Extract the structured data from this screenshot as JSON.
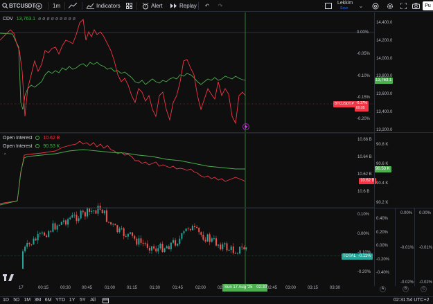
{
  "toolbar": {
    "symbol": "BTCUSDT",
    "interval": "1m",
    "indicators_label": "Indicators",
    "alert_label": "Alert",
    "replay_label": "Replay",
    "layout_name": "Lekkim",
    "layout_status": "Save",
    "publish_label": "Pu"
  },
  "panes": {
    "cdv": {
      "legend_title": "CDV",
      "legend_value": "13,763.1",
      "legend_extra": "ø ø ø ø ø ø ø ø ø",
      "price_ticks": [
        "14,400.0",
        "14,200.0",
        "14,000.0",
        "13,800.0",
        "13,600.0",
        "13,400.0",
        "13,200.0"
      ],
      "pct_ticks": [
        "0.00%",
        "-0.05%",
        "-0.10%",
        "-0.15%",
        "-0.20%"
      ],
      "cdv_tag": "13,763.1",
      "btc_tag_label": "BTCUSDT.P",
      "btc_tag_pct": "-0.17%",
      "btc_tag_time": "00:05"
    },
    "oi": {
      "legend_1_title": "Open Interest",
      "legend_1_value": "10.62 B",
      "legend_2_title": "Open Interest",
      "legend_2_value": "90.53 K",
      "left_ticks": [
        "10.66 B",
        "10.64 B",
        "10.62 B",
        "10.6 B"
      ],
      "right_ticks": [
        "90.8 K",
        "90.6 K",
        "90.4 K",
        "90.2 K"
      ],
      "tag_k": "90.53 K",
      "tag_b": "10.62 B"
    },
    "total": {
      "left_ticks": [
        "0.10%",
        "0.00%",
        "-0.10%",
        "-0.20%"
      ],
      "mid_ticks": [
        "0.40%",
        "0.20%",
        "0.00%",
        "-0.20%",
        "-0.40%"
      ],
      "right1_ticks": [
        "0.00%",
        "-0.01%",
        "-0.02%"
      ],
      "right2_ticks": [
        "0.00%",
        "-0.01%",
        "-0.02%"
      ],
      "tag_label": "TOTAL",
      "tag_value": "-0.11%",
      "badges": [
        "A",
        "B",
        "C"
      ]
    }
  },
  "time_axis": {
    "labels": [
      "17",
      "00:15",
      "00:30",
      "00:45",
      "01:00",
      "01:15",
      "01:30",
      "01:45",
      "02:00",
      "02:15",
      "02:45",
      "03:00",
      "03:15",
      "03:30"
    ],
    "cursor_label": "Sun 17 Aug '25",
    "cursor_time": "02:30"
  },
  "ranges": [
    "1D",
    "5D",
    "1M",
    "3M",
    "6M",
    "YTD",
    "1Y",
    "5Y",
    "All"
  ],
  "clock": "02:31:54 UTC+2",
  "colors": {
    "red": "#f23645",
    "green": "#4caf50",
    "cursor": "#2e7d32",
    "bg": "#0f0f0f",
    "grid": "#2a2e39"
  },
  "icons": [
    "plus-icon",
    "chart-type-icon",
    "indicators-icon",
    "templates-icon",
    "alert-icon",
    "replay-icon",
    "undo-icon",
    "redo-icon",
    "layout-icon",
    "search-icon",
    "settings-icon",
    "fullscreen-icon",
    "camera-icon",
    "tradingview-logo",
    "goto-date-icon",
    "lightning-icon"
  ]
}
